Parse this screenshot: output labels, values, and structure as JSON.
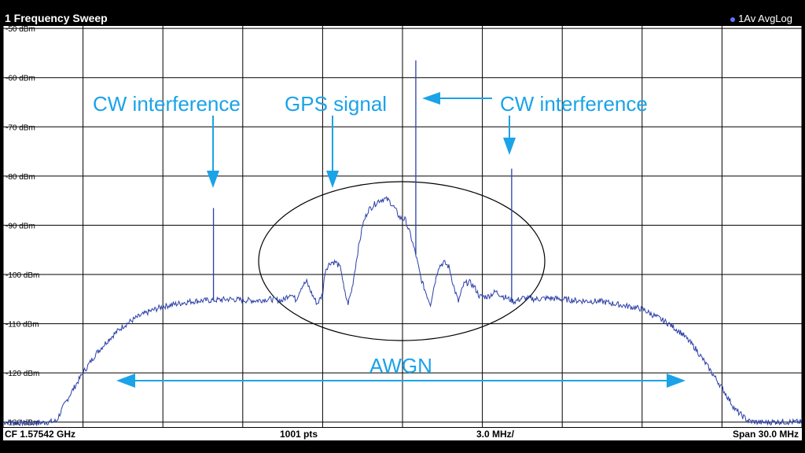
{
  "header": {
    "title": "1 Frequency Sweep",
    "trace_info": "1Av AvgLog"
  },
  "footer": {
    "center_frequency": "CF 1.57542 GHz",
    "points": "1001 pts",
    "per_division": "3.0 MHz/",
    "span": "Span 30.0 MHz"
  },
  "annotations": {
    "cw_left": "CW interference",
    "gps": "GPS signal",
    "cw_right": "CW interference",
    "awgn": "AWGN"
  },
  "colors": {
    "trace": "#2b3fa8",
    "annotation": "#1aa3e8",
    "grid": "#000000",
    "background": "#ffffff"
  },
  "chart_data": {
    "type": "line",
    "title": "",
    "xlabel": "",
    "ylabel": "",
    "y_tick_labels": [
      "-50 dBm",
      "-60 dBm",
      "-70 dBm",
      "-80 dBm",
      "-90 dBm",
      "-100 dBm",
      "-110 dBm",
      "-120 dBm",
      "-130 dBm"
    ],
    "ylim": [
      -131,
      -49.5
    ],
    "xlim_mhz": [
      -15,
      15
    ],
    "x_divisions": 10,
    "grid": true,
    "series": [
      {
        "points_mhz_dbm": [
          [
            -15,
            -130
          ],
          [
            -14,
            -130.2
          ],
          [
            -13.5,
            -130.1
          ],
          [
            -13,
            -129.8
          ],
          [
            -12.8,
            -127.5
          ],
          [
            -12.5,
            -124.5
          ],
          [
            -12,
            -120
          ],
          [
            -11.5,
            -116
          ],
          [
            -11,
            -113
          ],
          [
            -10.5,
            -110.5
          ],
          [
            -10,
            -108.8
          ],
          [
            -9.5,
            -107.5
          ],
          [
            -9,
            -106.5
          ],
          [
            -8.5,
            -106
          ],
          [
            -8,
            -105.5
          ],
          [
            -7.5,
            -105.3
          ],
          [
            -7,
            -105.2
          ],
          [
            -6.5,
            -105
          ],
          [
            -6,
            -105.2
          ],
          [
            -5.5,
            -105.3
          ],
          [
            -5,
            -105
          ],
          [
            -4.5,
            -105.3
          ],
          [
            -4.2,
            -103.8
          ],
          [
            -4,
            -105.2
          ],
          [
            -3.8,
            -102.5
          ],
          [
            -3.6,
            -101.5
          ],
          [
            -3.4,
            -104
          ],
          [
            -3.2,
            -106
          ],
          [
            -3,
            -104
          ],
          [
            -2.9,
            -99
          ],
          [
            -2.7,
            -97.5
          ],
          [
            -2.5,
            -97.5
          ],
          [
            -2.3,
            -99
          ],
          [
            -2.2,
            -103
          ],
          [
            -2.05,
            -106
          ],
          [
            -1.9,
            -103
          ],
          [
            -1.7,
            -96
          ],
          [
            -1.5,
            -90
          ],
          [
            -1.3,
            -87
          ],
          [
            -1.1,
            -86
          ],
          [
            -0.9,
            -85
          ],
          [
            -0.7,
            -84.6
          ],
          [
            -0.5,
            -85
          ],
          [
            -0.3,
            -86.5
          ],
          [
            -0.1,
            -88.5
          ],
          [
            0.1,
            -88.8
          ],
          [
            0.3,
            -92
          ],
          [
            0.5,
            -96
          ],
          [
            0.7,
            -101
          ],
          [
            0.9,
            -104
          ],
          [
            1.05,
            -106
          ],
          [
            1.2,
            -102
          ],
          [
            1.35,
            -98.5
          ],
          [
            1.55,
            -97.5
          ],
          [
            1.75,
            -98.5
          ],
          [
            1.95,
            -103
          ],
          [
            2.1,
            -105.5
          ],
          [
            2.3,
            -102
          ],
          [
            2.5,
            -101.5
          ],
          [
            2.7,
            -102.5
          ],
          [
            2.9,
            -104.5
          ],
          [
            3.2,
            -104.5
          ],
          [
            3.5,
            -103.5
          ],
          [
            3.8,
            -104.5
          ],
          [
            4.2,
            -105.5
          ],
          [
            4.5,
            -104.8
          ],
          [
            5,
            -105
          ],
          [
            5.5,
            -104.8
          ],
          [
            6,
            -105
          ],
          [
            6.5,
            -105.3
          ],
          [
            7,
            -105.4
          ],
          [
            7.5,
            -105.5
          ],
          [
            8,
            -106
          ],
          [
            8.5,
            -106.5
          ],
          [
            9,
            -107
          ],
          [
            9.5,
            -108.5
          ],
          [
            10,
            -110
          ],
          [
            10.5,
            -112
          ],
          [
            11,
            -115
          ],
          [
            11.5,
            -119
          ],
          [
            12,
            -123
          ],
          [
            12.5,
            -127.5
          ],
          [
            13,
            -129.8
          ],
          [
            13.5,
            -130.1
          ],
          [
            14,
            -129.9
          ],
          [
            15,
            -130
          ]
        ],
        "spikes_mhz_dbm": [
          [
            -7.1,
            -86.5
          ],
          [
            0.5,
            -56.5
          ],
          [
            4.1,
            -78.5
          ]
        ]
      }
    ]
  }
}
